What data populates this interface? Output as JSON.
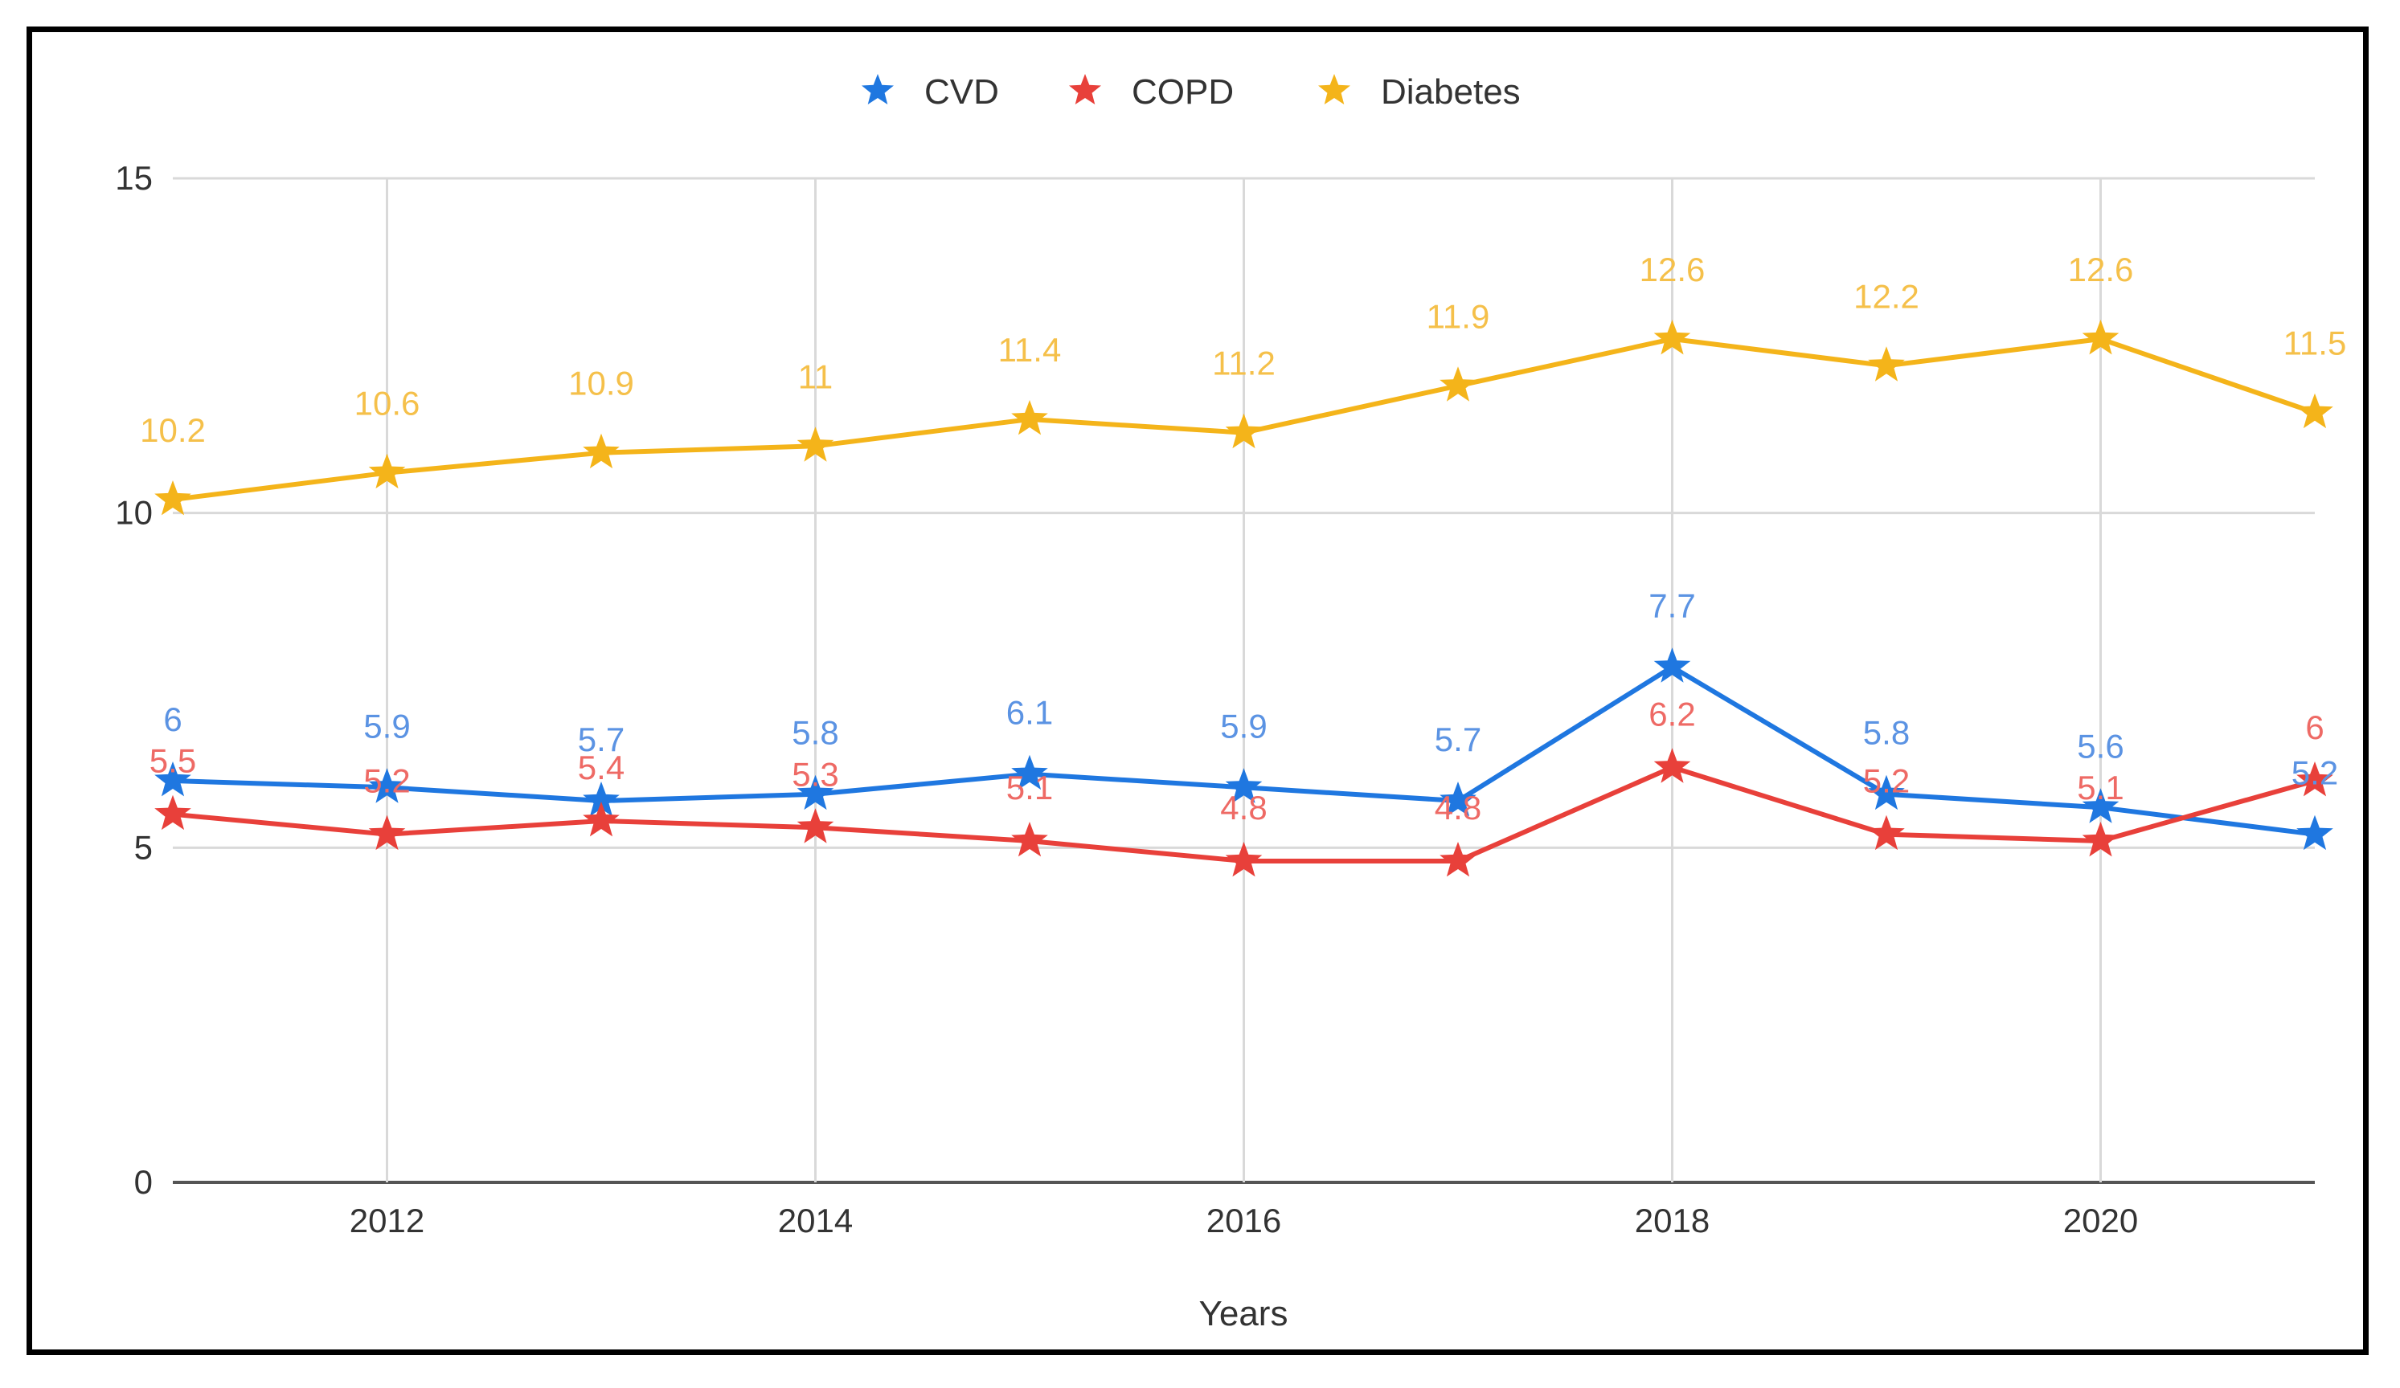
{
  "chart_data": {
    "type": "line",
    "title": "",
    "xlabel": "Years",
    "ylabel": "",
    "x": [
      2011,
      2012,
      2013,
      2014,
      2015,
      2016,
      2017,
      2018,
      2019,
      2020,
      2021
    ],
    "x_ticks": [
      "2012",
      "2014",
      "2016",
      "2018",
      "2020"
    ],
    "y_ticks": [
      "0",
      "5",
      "10",
      "15"
    ],
    "xlim": [
      2011,
      2021
    ],
    "ylim": [
      0,
      15
    ],
    "grid": true,
    "legend_position": "top-center",
    "marker": "star",
    "series": [
      {
        "name": "CVD",
        "color": "#1f77e0",
        "label_color": "#5b93e3",
        "values": [
          6,
          5.9,
          5.7,
          5.8,
          6.1,
          5.9,
          5.7,
          7.7,
          5.8,
          5.6,
          5.2
        ],
        "labels": [
          "6",
          "5.9",
          "5.7",
          "5.8",
          "6.1",
          "5.9",
          "5.7",
          "7.7",
          "5.8",
          "5.6",
          "5.2"
        ]
      },
      {
        "name": "COPD",
        "color": "#e8403a",
        "label_color": "#ee6a65",
        "values": [
          5.5,
          5.2,
          5.4,
          5.3,
          5.1,
          4.8,
          4.8,
          6.2,
          5.2,
          5.1,
          6
        ],
        "labels": [
          "5.5",
          "5.2",
          "5.4",
          "5.3",
          "5.1",
          "4.8",
          "4.8",
          "6.2",
          "5.2",
          "5.1",
          "6"
        ]
      },
      {
        "name": "Diabetes",
        "color": "#f4b41a",
        "label_color": "#f5c04a",
        "values": [
          10.2,
          10.6,
          10.9,
          11,
          11.4,
          11.2,
          11.9,
          12.6,
          12.2,
          12.6,
          11.5
        ],
        "labels": [
          "10.2",
          "10.6",
          "10.9",
          "11",
          "11.4",
          "11.2",
          "11.9",
          "12.6",
          "12.2",
          "12.6",
          "11.5"
        ]
      }
    ]
  }
}
